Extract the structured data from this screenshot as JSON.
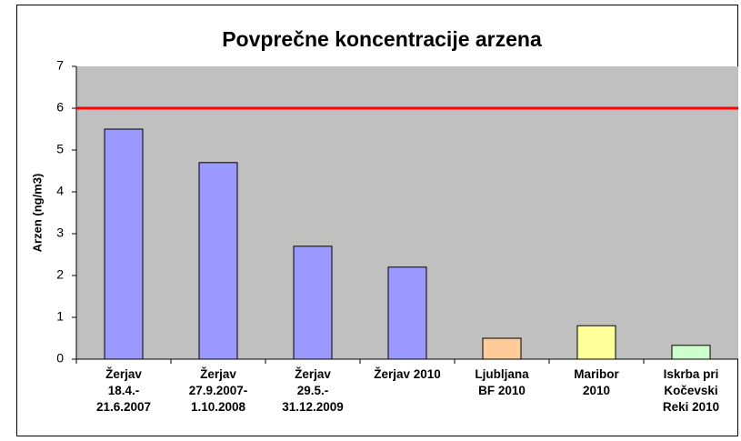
{
  "chart_data": {
    "type": "bar",
    "title": "Povprečne koncentracije arzena",
    "y_label": "Arzen (ng/m3)",
    "categories": [
      "Žerjav\n18.4.-\n21.6.2007",
      "Žerjav\n27.9.2007-\n1.10.2008",
      "Žerjav\n29.5.-\n31.12.2009",
      "Žerjav 2010",
      "Ljubljana\nBF 2010",
      "Maribor\n2010",
      "Iskrba pri\nKočevski\nReki 2010"
    ],
    "values": [
      5.5,
      4.7,
      2.7,
      2.2,
      0.5,
      0.8,
      0.33
    ],
    "colors": [
      "#9999ff",
      "#9999ff",
      "#9999ff",
      "#9999ff",
      "#ffcc99",
      "#ffff99",
      "#ccffcc"
    ],
    "reference_line": {
      "value": 6,
      "color": "#ff0000"
    },
    "ylim": [
      0,
      7
    ],
    "yticks": [
      0,
      1,
      2,
      3,
      4,
      5,
      6,
      7
    ],
    "plot_background": "#c0c0c0"
  }
}
